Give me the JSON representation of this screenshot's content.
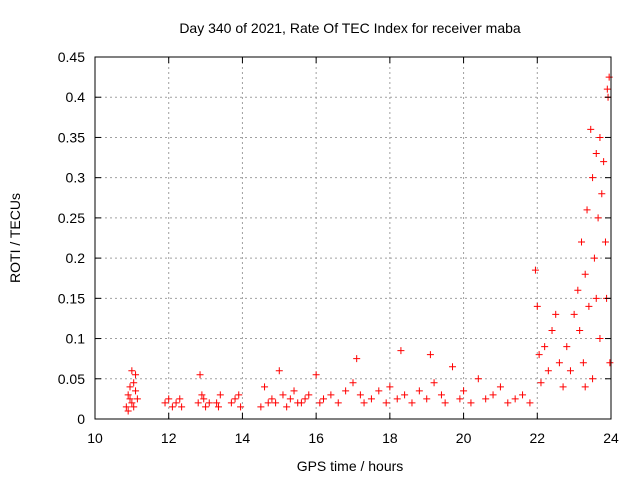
{
  "chart_data": {
    "type": "scatter",
    "title": "Day 340 of 2021, Rate Of TEC Index for receiver maba",
    "xlabel": "GPS time / hours",
    "ylabel": "ROTI / TECUs",
    "xlim": [
      10,
      24
    ],
    "ylim": [
      0,
      0.45
    ],
    "x_ticks": [
      10,
      12,
      14,
      16,
      18,
      20,
      22,
      24
    ],
    "x_tick_labels": [
      "10",
      "12",
      "14",
      "16",
      "18",
      "20",
      "22",
      "24"
    ],
    "y_ticks": [
      0,
      0.05,
      0.1,
      0.15,
      0.2,
      0.25,
      0.3,
      0.35,
      0.4,
      0.45
    ],
    "y_tick_labels": [
      "0",
      "0.05",
      "0.1",
      "0.15",
      "0.2",
      "0.25",
      "0.3",
      "0.35",
      "0.4",
      "0.45"
    ],
    "grid": true,
    "marker": "plus",
    "series": [
      {
        "color": "#ff0000",
        "points": [
          [
            10.85,
            0.015
          ],
          [
            10.9,
            0.03
          ],
          [
            10.95,
            0.025
          ],
          [
            11.0,
            0.02
          ],
          [
            11.05,
            0.045
          ],
          [
            11.1,
            0.035
          ],
          [
            11.15,
            0.025
          ],
          [
            10.9,
            0.01
          ],
          [
            11.0,
            0.06
          ],
          [
            11.1,
            0.055
          ],
          [
            11.05,
            0.015
          ],
          [
            10.95,
            0.04
          ],
          [
            11.9,
            0.02
          ],
          [
            12.0,
            0.025
          ],
          [
            12.1,
            0.015
          ],
          [
            12.2,
            0.02
          ],
          [
            12.3,
            0.025
          ],
          [
            12.35,
            0.015
          ],
          [
            12.8,
            0.02
          ],
          [
            12.85,
            0.055
          ],
          [
            12.9,
            0.03
          ],
          [
            12.95,
            0.025
          ],
          [
            13.0,
            0.015
          ],
          [
            13.1,
            0.02
          ],
          [
            13.3,
            0.02
          ],
          [
            13.4,
            0.03
          ],
          [
            13.35,
            0.015
          ],
          [
            13.7,
            0.02
          ],
          [
            13.8,
            0.025
          ],
          [
            13.9,
            0.03
          ],
          [
            13.95,
            0.015
          ],
          [
            14.5,
            0.015
          ],
          [
            14.6,
            0.04
          ],
          [
            14.7,
            0.02
          ],
          [
            14.8,
            0.025
          ],
          [
            14.9,
            0.02
          ],
          [
            15.0,
            0.06
          ],
          [
            15.1,
            0.03
          ],
          [
            15.2,
            0.015
          ],
          [
            15.3,
            0.025
          ],
          [
            15.4,
            0.035
          ],
          [
            15.5,
            0.02
          ],
          [
            15.6,
            0.02
          ],
          [
            15.7,
            0.025
          ],
          [
            15.8,
            0.03
          ],
          [
            16.0,
            0.055
          ],
          [
            16.1,
            0.02
          ],
          [
            16.2,
            0.025
          ],
          [
            16.4,
            0.03
          ],
          [
            16.6,
            0.02
          ],
          [
            16.8,
            0.035
          ],
          [
            17.0,
            0.045
          ],
          [
            17.1,
            0.075
          ],
          [
            17.2,
            0.03
          ],
          [
            17.3,
            0.02
          ],
          [
            17.5,
            0.025
          ],
          [
            17.7,
            0.035
          ],
          [
            17.9,
            0.02
          ],
          [
            18.0,
            0.04
          ],
          [
            18.2,
            0.025
          ],
          [
            18.3,
            0.085
          ],
          [
            18.4,
            0.03
          ],
          [
            18.6,
            0.02
          ],
          [
            18.8,
            0.035
          ],
          [
            19.0,
            0.025
          ],
          [
            19.1,
            0.08
          ],
          [
            19.2,
            0.045
          ],
          [
            19.4,
            0.03
          ],
          [
            19.5,
            0.02
          ],
          [
            19.7,
            0.065
          ],
          [
            19.9,
            0.025
          ],
          [
            20.0,
            0.035
          ],
          [
            20.2,
            0.02
          ],
          [
            20.4,
            0.05
          ],
          [
            20.6,
            0.025
          ],
          [
            20.8,
            0.03
          ],
          [
            21.0,
            0.04
          ],
          [
            21.2,
            0.02
          ],
          [
            21.4,
            0.025
          ],
          [
            21.6,
            0.03
          ],
          [
            21.8,
            0.02
          ],
          [
            21.95,
            0.185
          ],
          [
            22.0,
            0.14
          ],
          [
            22.05,
            0.08
          ],
          [
            22.1,
            0.045
          ],
          [
            22.2,
            0.09
          ],
          [
            22.3,
            0.06
          ],
          [
            22.4,
            0.11
          ],
          [
            22.5,
            0.13
          ],
          [
            22.6,
            0.07
          ],
          [
            22.7,
            0.04
          ],
          [
            22.8,
            0.09
          ],
          [
            22.9,
            0.06
          ],
          [
            23.0,
            0.13
          ],
          [
            23.1,
            0.16
          ],
          [
            23.15,
            0.11
          ],
          [
            23.2,
            0.22
          ],
          [
            23.25,
            0.07
          ],
          [
            23.3,
            0.18
          ],
          [
            23.35,
            0.26
          ],
          [
            23.4,
            0.14
          ],
          [
            23.45,
            0.36
          ],
          [
            23.5,
            0.3
          ],
          [
            23.55,
            0.2
          ],
          [
            23.6,
            0.33
          ],
          [
            23.65,
            0.25
          ],
          [
            23.7,
            0.35
          ],
          [
            23.75,
            0.28
          ],
          [
            23.8,
            0.32
          ],
          [
            23.85,
            0.22
          ],
          [
            23.9,
            0.41
          ],
          [
            23.95,
            0.425
          ],
          [
            23.92,
            0.4
          ],
          [
            23.88,
            0.15
          ],
          [
            23.97,
            0.07
          ],
          [
            23.7,
            0.1
          ],
          [
            23.5,
            0.05
          ],
          [
            23.3,
            0.04
          ],
          [
            23.6,
            0.15
          ]
        ]
      }
    ]
  }
}
